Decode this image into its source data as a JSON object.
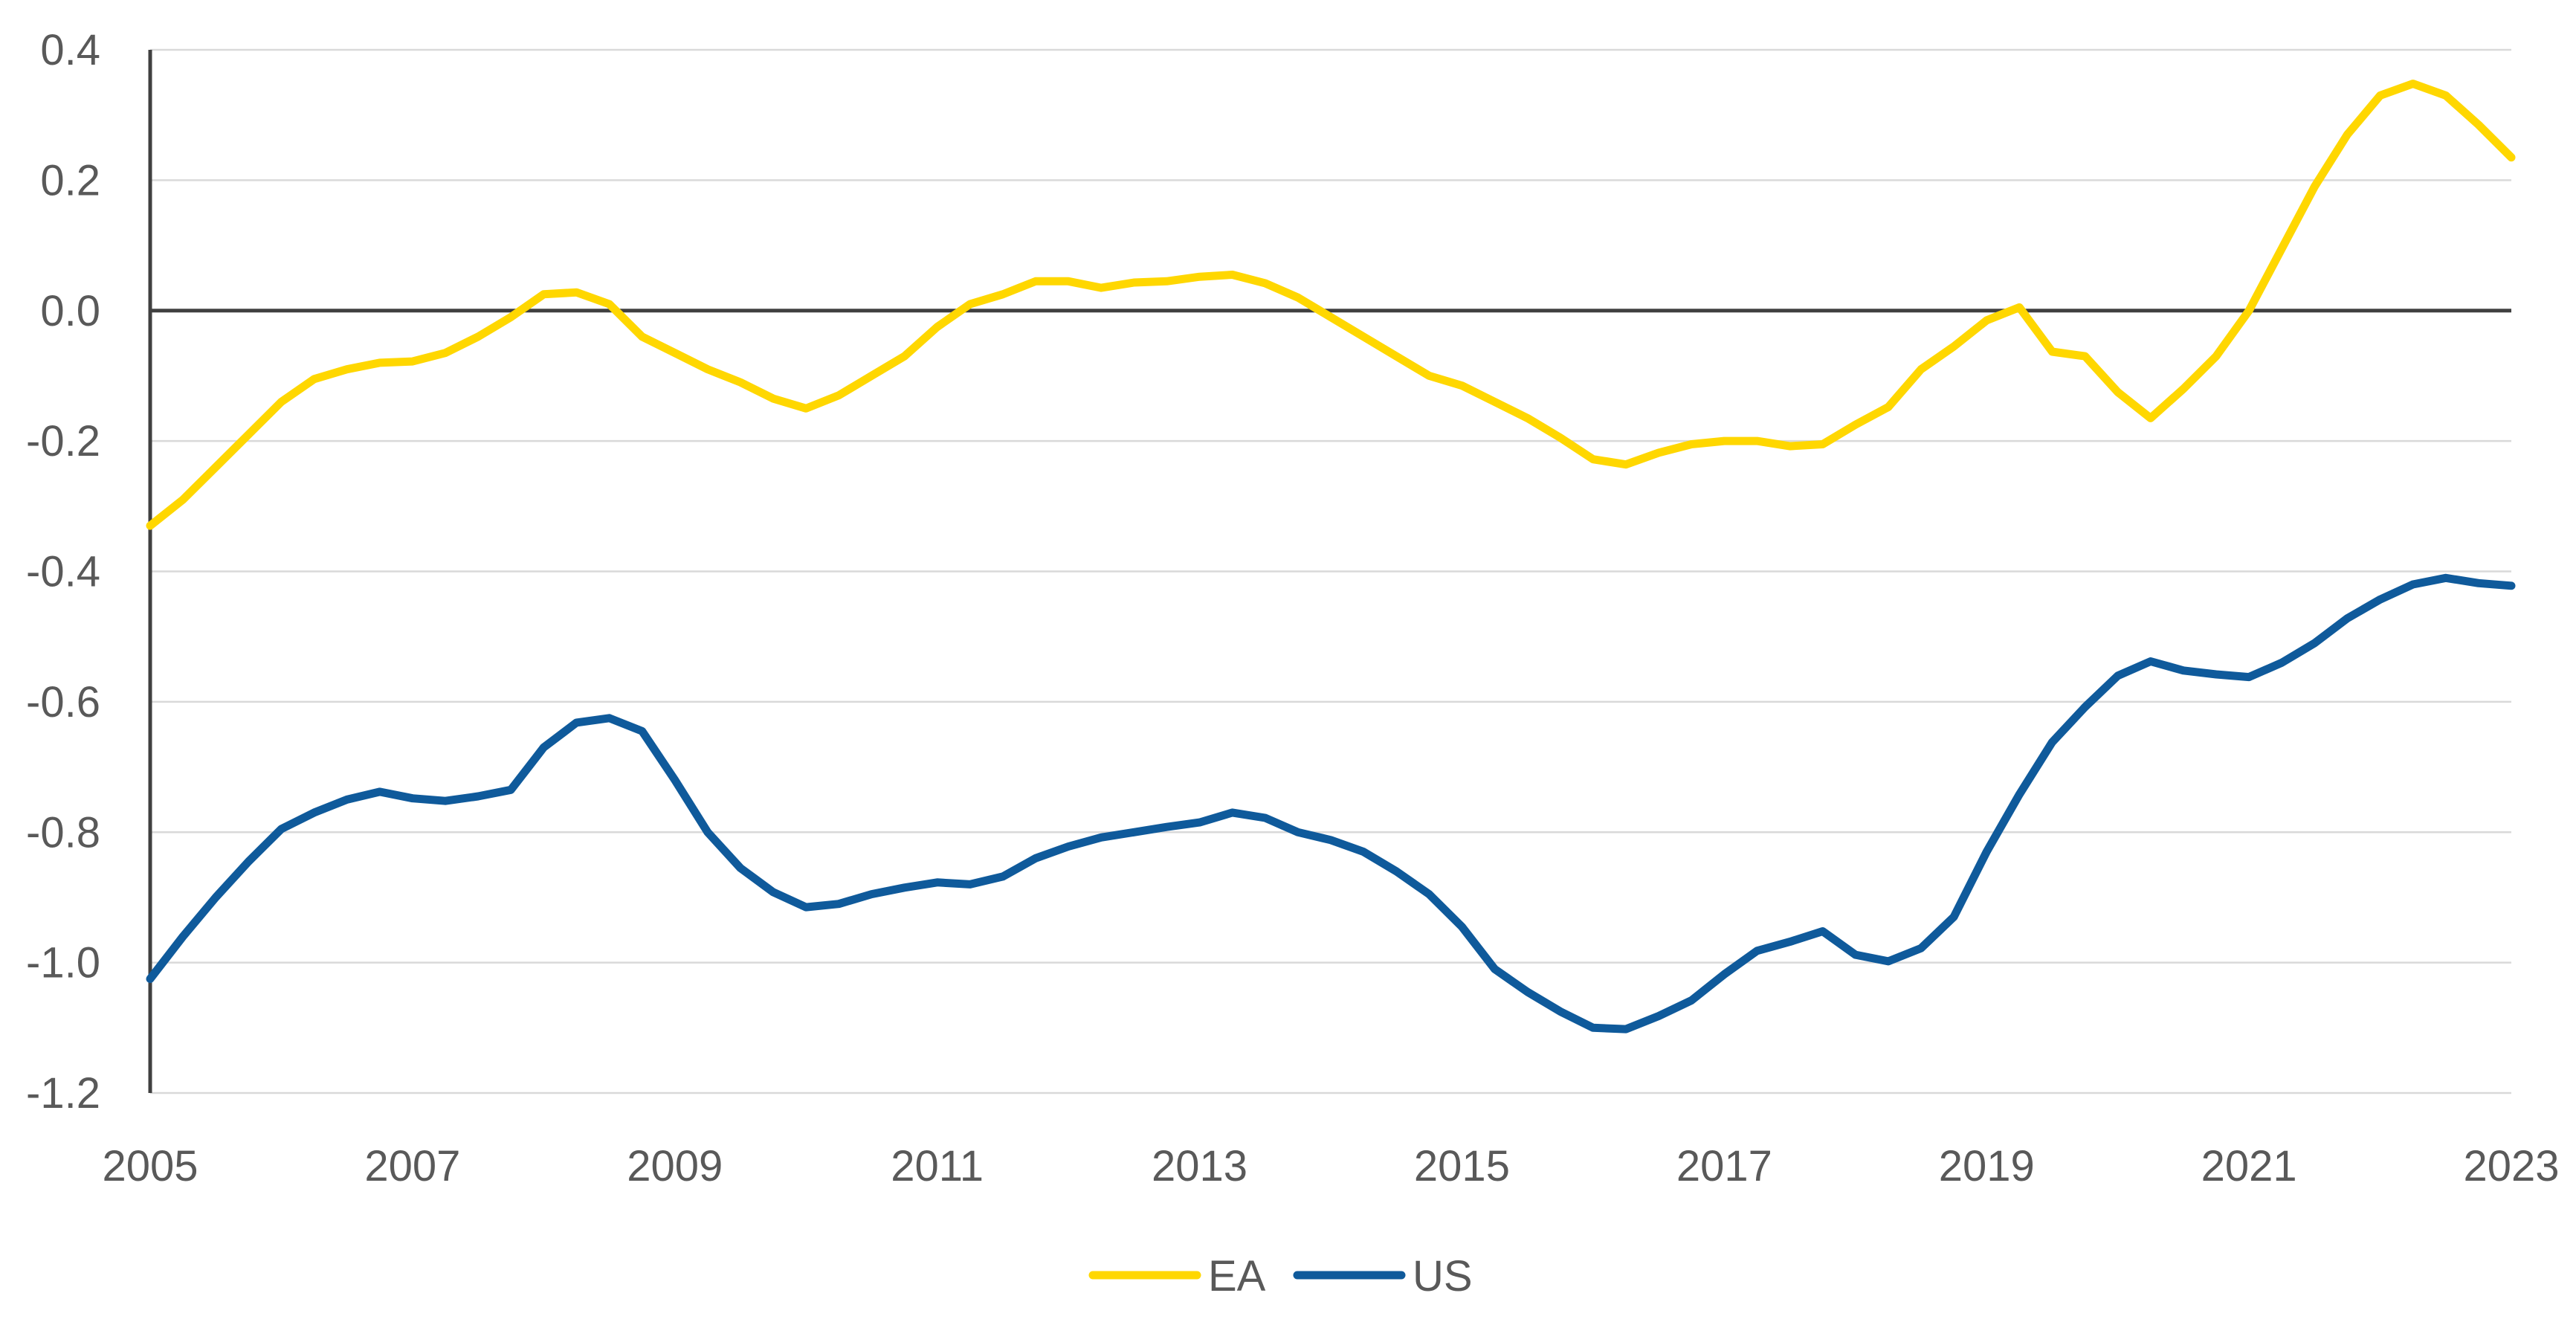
{
  "chart_data": {
    "type": "line",
    "title": "",
    "xlabel": "",
    "ylabel": "",
    "xlim": [
      2005,
      2023
    ],
    "ylim": [
      -1.2,
      0.4
    ],
    "x_ticks": [
      "2005",
      "2007",
      "2009",
      "2011",
      "2013",
      "2015",
      "2017",
      "2019",
      "2021",
      "2023"
    ],
    "y_ticks": [
      "0.4",
      "0.2",
      "0.0",
      "-0.2",
      "-0.4",
      "-0.6",
      "-0.8",
      "-1.0",
      "-1.2"
    ],
    "grid": "horizontal",
    "zero_line": true,
    "legend_position": "bottom",
    "series": [
      {
        "name": "EA",
        "color": "#FFD700",
        "points": [
          [
            2005.0,
            -0.33
          ],
          [
            2005.25,
            -0.29
          ],
          [
            2005.5,
            -0.24
          ],
          [
            2005.75,
            -0.19
          ],
          [
            2006.0,
            -0.14
          ],
          [
            2006.25,
            -0.105
          ],
          [
            2006.5,
            -0.09
          ],
          [
            2006.75,
            -0.08
          ],
          [
            2007.0,
            -0.078
          ],
          [
            2007.25,
            -0.065
          ],
          [
            2007.5,
            -0.04
          ],
          [
            2007.75,
            -0.01
          ],
          [
            2008.0,
            0.025
          ],
          [
            2008.25,
            0.028
          ],
          [
            2008.5,
            0.01
          ],
          [
            2008.75,
            -0.04
          ],
          [
            2009.0,
            -0.065
          ],
          [
            2009.25,
            -0.09
          ],
          [
            2009.5,
            -0.11
          ],
          [
            2009.75,
            -0.135
          ],
          [
            2010.0,
            -0.15
          ],
          [
            2010.25,
            -0.13
          ],
          [
            2010.5,
            -0.1
          ],
          [
            2010.75,
            -0.07
          ],
          [
            2011.0,
            -0.025
          ],
          [
            2011.25,
            0.01
          ],
          [
            2011.5,
            0.025
          ],
          [
            2011.75,
            0.045
          ],
          [
            2012.0,
            0.045
          ],
          [
            2012.25,
            0.035
          ],
          [
            2012.5,
            0.043
          ],
          [
            2012.75,
            0.045
          ],
          [
            2013.0,
            0.052
          ],
          [
            2013.25,
            0.055
          ],
          [
            2013.5,
            0.042
          ],
          [
            2013.75,
            0.02
          ],
          [
            2014.0,
            -0.01
          ],
          [
            2014.25,
            -0.04
          ],
          [
            2014.5,
            -0.07
          ],
          [
            2014.75,
            -0.1
          ],
          [
            2015.0,
            -0.115
          ],
          [
            2015.25,
            -0.14
          ],
          [
            2015.5,
            -0.165
          ],
          [
            2015.75,
            -0.195
          ],
          [
            2016.0,
            -0.228
          ],
          [
            2016.25,
            -0.236
          ],
          [
            2016.5,
            -0.218
          ],
          [
            2016.75,
            -0.205
          ],
          [
            2017.0,
            -0.2
          ],
          [
            2017.25,
            -0.2
          ],
          [
            2017.5,
            -0.208
          ],
          [
            2017.75,
            -0.205
          ],
          [
            2018.0,
            -0.175
          ],
          [
            2018.25,
            -0.148
          ],
          [
            2018.5,
            -0.09
          ],
          [
            2018.75,
            -0.055
          ],
          [
            2019.0,
            -0.015
          ],
          [
            2019.25,
            0.005
          ],
          [
            2019.5,
            -0.063
          ],
          [
            2019.75,
            -0.07
          ],
          [
            2020.0,
            -0.125
          ],
          [
            2020.25,
            -0.165
          ],
          [
            2020.5,
            -0.12
          ],
          [
            2020.75,
            -0.07
          ],
          [
            2021.0,
            0.0
          ],
          [
            2021.25,
            0.095
          ],
          [
            2021.5,
            0.19
          ],
          [
            2021.75,
            0.27
          ],
          [
            2022.0,
            0.33
          ],
          [
            2022.25,
            0.348
          ],
          [
            2022.5,
            0.33
          ],
          [
            2022.75,
            0.285
          ],
          [
            2023.0,
            0.235
          ]
        ]
      },
      {
        "name": "US",
        "color": "#0F5A9B",
        "points": [
          [
            2005.0,
            -1.025
          ],
          [
            2005.25,
            -0.96
          ],
          [
            2005.5,
            -0.9
          ],
          [
            2005.75,
            -0.845
          ],
          [
            2006.0,
            -0.795
          ],
          [
            2006.25,
            -0.77
          ],
          [
            2006.5,
            -0.75
          ],
          [
            2006.75,
            -0.738
          ],
          [
            2007.0,
            -0.748
          ],
          [
            2007.25,
            -0.752
          ],
          [
            2007.5,
            -0.745
          ],
          [
            2007.75,
            -0.735
          ],
          [
            2008.0,
            -0.67
          ],
          [
            2008.25,
            -0.632
          ],
          [
            2008.5,
            -0.625
          ],
          [
            2008.75,
            -0.645
          ],
          [
            2009.0,
            -0.72
          ],
          [
            2009.25,
            -0.8
          ],
          [
            2009.5,
            -0.855
          ],
          [
            2009.75,
            -0.892
          ],
          [
            2010.0,
            -0.915
          ],
          [
            2010.25,
            -0.91
          ],
          [
            2010.5,
            -0.895
          ],
          [
            2010.75,
            -0.885
          ],
          [
            2011.0,
            -0.877
          ],
          [
            2011.25,
            -0.88
          ],
          [
            2011.5,
            -0.868
          ],
          [
            2011.75,
            -0.84
          ],
          [
            2012.0,
            -0.822
          ],
          [
            2012.25,
            -0.808
          ],
          [
            2012.5,
            -0.8
          ],
          [
            2012.75,
            -0.792
          ],
          [
            2013.0,
            -0.785
          ],
          [
            2013.25,
            -0.77
          ],
          [
            2013.5,
            -0.778
          ],
          [
            2013.75,
            -0.8
          ],
          [
            2014.0,
            -0.812
          ],
          [
            2014.25,
            -0.83
          ],
          [
            2014.5,
            -0.86
          ],
          [
            2014.75,
            -0.895
          ],
          [
            2015.0,
            -0.945
          ],
          [
            2015.25,
            -1.01
          ],
          [
            2015.5,
            -1.045
          ],
          [
            2015.75,
            -1.075
          ],
          [
            2016.0,
            -1.1
          ],
          [
            2016.25,
            -1.102
          ],
          [
            2016.5,
            -1.082
          ],
          [
            2016.75,
            -1.058
          ],
          [
            2017.0,
            -1.018
          ],
          [
            2017.25,
            -0.982
          ],
          [
            2017.5,
            -0.968
          ],
          [
            2017.75,
            -0.952
          ],
          [
            2018.0,
            -0.988
          ],
          [
            2018.25,
            -0.998
          ],
          [
            2018.5,
            -0.978
          ],
          [
            2018.75,
            -0.93
          ],
          [
            2019.0,
            -0.83
          ],
          [
            2019.25,
            -0.742
          ],
          [
            2019.5,
            -0.662
          ],
          [
            2019.75,
            -0.608
          ],
          [
            2020.0,
            -0.56
          ],
          [
            2020.25,
            -0.538
          ],
          [
            2020.5,
            -0.552
          ],
          [
            2020.75,
            -0.558
          ],
          [
            2021.0,
            -0.562
          ],
          [
            2021.25,
            -0.54
          ],
          [
            2021.5,
            -0.51
          ],
          [
            2021.75,
            -0.472
          ],
          [
            2022.0,
            -0.443
          ],
          [
            2022.25,
            -0.42
          ],
          [
            2022.5,
            -0.41
          ],
          [
            2022.75,
            -0.418
          ],
          [
            2023.0,
            -0.422
          ]
        ]
      }
    ]
  }
}
